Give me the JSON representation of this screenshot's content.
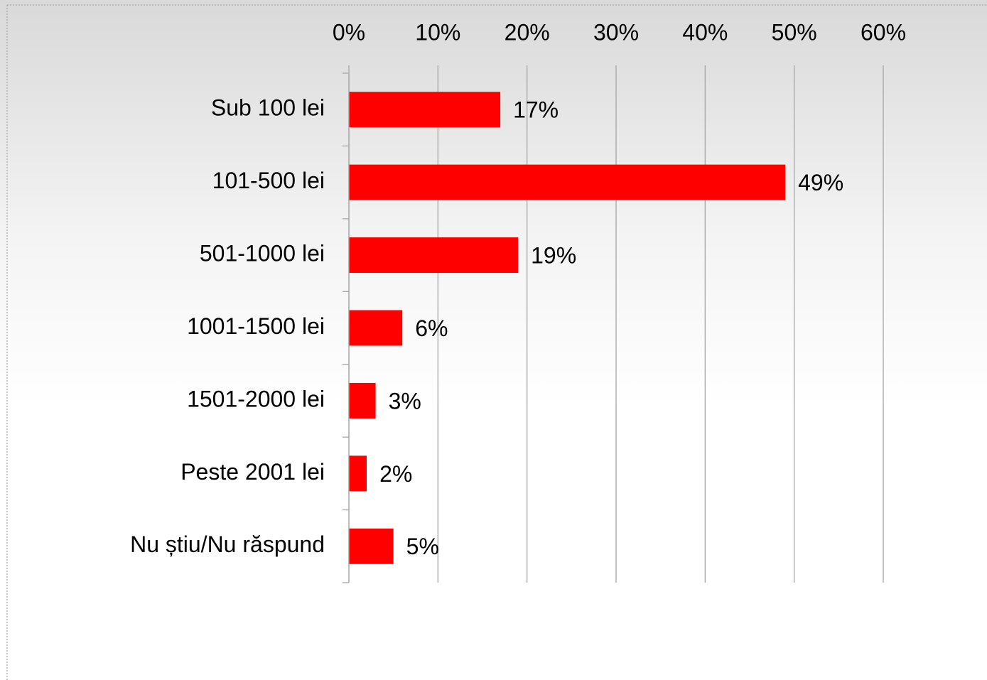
{
  "chart_data": {
    "type": "bar",
    "orientation": "horizontal",
    "categories": [
      "Sub 100 lei",
      "101-500 lei",
      "501-1000 lei",
      "1001-1500 lei",
      "1501-2000 lei",
      "Peste 2001 lei",
      "Nu știu/Nu răspund"
    ],
    "values": [
      17,
      49,
      19,
      6,
      3,
      2,
      5
    ],
    "value_labels": [
      "17%",
      "49%",
      "19%",
      "6%",
      "3%",
      "2%",
      "5%"
    ],
    "color": "#ff0000",
    "xlim": [
      0,
      60
    ],
    "xticks": [
      {
        "value": 0,
        "label": "0%"
      },
      {
        "value": 10,
        "label": "10%"
      },
      {
        "value": 20,
        "label": "20%"
      },
      {
        "value": 30,
        "label": "30%"
      },
      {
        "value": 40,
        "label": "40%"
      },
      {
        "value": 50,
        "label": "50%"
      },
      {
        "value": 60,
        "label": "60%"
      }
    ],
    "grid": true
  }
}
